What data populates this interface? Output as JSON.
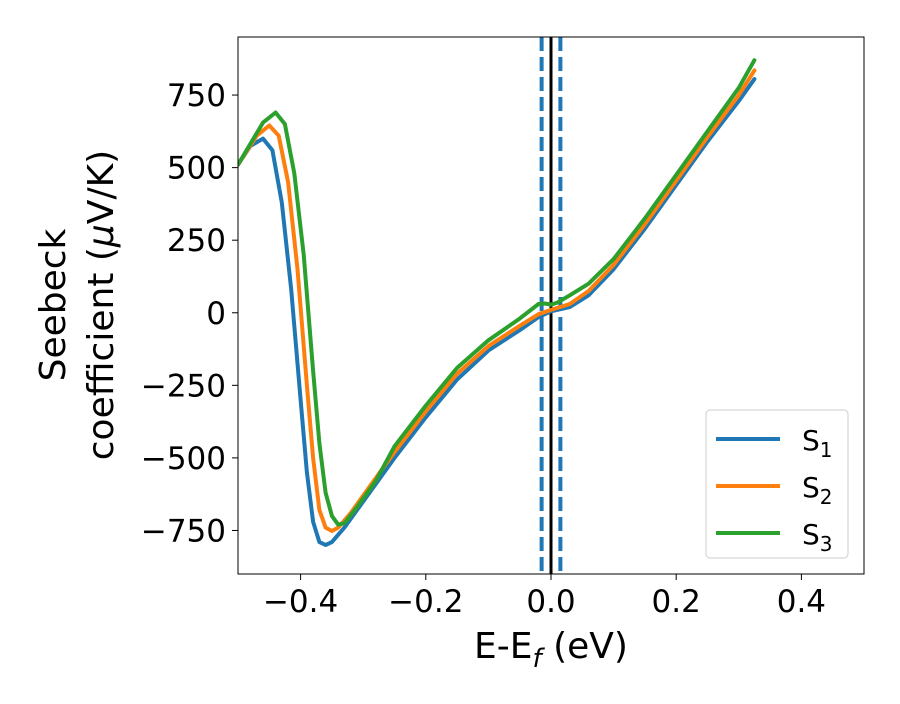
{
  "chart_data": {
    "type": "line",
    "title": "",
    "xlabel": "E-E_f (eV)",
    "ylabel_line1": "Seebeck",
    "ylabel_line2": "coefficient  (μV/K)",
    "xlim": [
      -0.5,
      0.5
    ],
    "ylim": [
      -900,
      950
    ],
    "x_ticks": [
      -0.4,
      -0.2,
      0.0,
      0.2,
      0.4
    ],
    "x_tick_labels": [
      "−0.4",
      "−0.2",
      "0.0",
      "0.2",
      "0.4"
    ],
    "y_ticks": [
      -750,
      -500,
      -250,
      0,
      250,
      500,
      750
    ],
    "y_tick_labels": [
      "−750",
      "−500",
      "−250",
      "0",
      "250",
      "500",
      "750"
    ],
    "grid": false,
    "legend_position": "bottom-right",
    "vertical_lines": [
      {
        "x": 0.0,
        "style": "solid",
        "color": "#000000"
      },
      {
        "x": -0.015,
        "style": "dashed",
        "color": "#1f77b4"
      },
      {
        "x": 0.015,
        "style": "dashed",
        "color": "#1f77b4"
      }
    ],
    "series": [
      {
        "name": "S",
        "subscript": "1",
        "color": "#1f77b4",
        "points": [
          [
            -0.5,
            510
          ],
          [
            -0.48,
            575
          ],
          [
            -0.46,
            600
          ],
          [
            -0.445,
            560
          ],
          [
            -0.43,
            380
          ],
          [
            -0.415,
            80
          ],
          [
            -0.4,
            -300
          ],
          [
            -0.39,
            -550
          ],
          [
            -0.38,
            -720
          ],
          [
            -0.37,
            -790
          ],
          [
            -0.36,
            -800
          ],
          [
            -0.35,
            -790
          ],
          [
            -0.33,
            -740
          ],
          [
            -0.3,
            -650
          ],
          [
            -0.25,
            -500
          ],
          [
            -0.2,
            -360
          ],
          [
            -0.15,
            -230
          ],
          [
            -0.1,
            -130
          ],
          [
            -0.05,
            -60
          ],
          [
            -0.02,
            -15
          ],
          [
            0.0,
            5
          ],
          [
            0.03,
            20
          ],
          [
            0.06,
            60
          ],
          [
            0.1,
            150
          ],
          [
            0.15,
            290
          ],
          [
            0.2,
            440
          ],
          [
            0.25,
            590
          ],
          [
            0.3,
            730
          ],
          [
            0.325,
            805
          ]
        ]
      },
      {
        "name": "S",
        "subscript": "2",
        "color": "#ff7f0e",
        "points": [
          [
            -0.5,
            510
          ],
          [
            -0.47,
            610
          ],
          [
            -0.45,
            645
          ],
          [
            -0.435,
            610
          ],
          [
            -0.42,
            450
          ],
          [
            -0.405,
            150
          ],
          [
            -0.39,
            -250
          ],
          [
            -0.38,
            -500
          ],
          [
            -0.37,
            -680
          ],
          [
            -0.36,
            -740
          ],
          [
            -0.35,
            -752
          ],
          [
            -0.34,
            -740
          ],
          [
            -0.32,
            -690
          ],
          [
            -0.3,
            -630
          ],
          [
            -0.25,
            -480
          ],
          [
            -0.2,
            -340
          ],
          [
            -0.15,
            -210
          ],
          [
            -0.1,
            -115
          ],
          [
            -0.05,
            -45
          ],
          [
            -0.02,
            -5
          ],
          [
            0.0,
            10
          ],
          [
            0.03,
            30
          ],
          [
            0.06,
            75
          ],
          [
            0.1,
            165
          ],
          [
            0.15,
            305
          ],
          [
            0.2,
            455
          ],
          [
            0.25,
            605
          ],
          [
            0.3,
            750
          ],
          [
            0.325,
            835
          ]
        ]
      },
      {
        "name": "S",
        "subscript": "3",
        "color": "#2ca02c",
        "points": [
          [
            -0.5,
            510
          ],
          [
            -0.46,
            655
          ],
          [
            -0.44,
            690
          ],
          [
            -0.425,
            650
          ],
          [
            -0.41,
            480
          ],
          [
            -0.395,
            200
          ],
          [
            -0.38,
            -200
          ],
          [
            -0.37,
            -450
          ],
          [
            -0.36,
            -620
          ],
          [
            -0.35,
            -700
          ],
          [
            -0.34,
            -730
          ],
          [
            -0.33,
            -725
          ],
          [
            -0.31,
            -670
          ],
          [
            -0.28,
            -580
          ],
          [
            -0.25,
            -460
          ],
          [
            -0.2,
            -320
          ],
          [
            -0.15,
            -190
          ],
          [
            -0.1,
            -95
          ],
          [
            -0.05,
            -20
          ],
          [
            -0.02,
            30
          ],
          [
            -0.01,
            32
          ],
          [
            0.0,
            28
          ],
          [
            0.01,
            35
          ],
          [
            0.03,
            60
          ],
          [
            0.06,
            100
          ],
          [
            0.1,
            185
          ],
          [
            0.15,
            325
          ],
          [
            0.2,
            475
          ],
          [
            0.25,
            625
          ],
          [
            0.3,
            775
          ],
          [
            0.325,
            870
          ]
        ]
      }
    ]
  }
}
